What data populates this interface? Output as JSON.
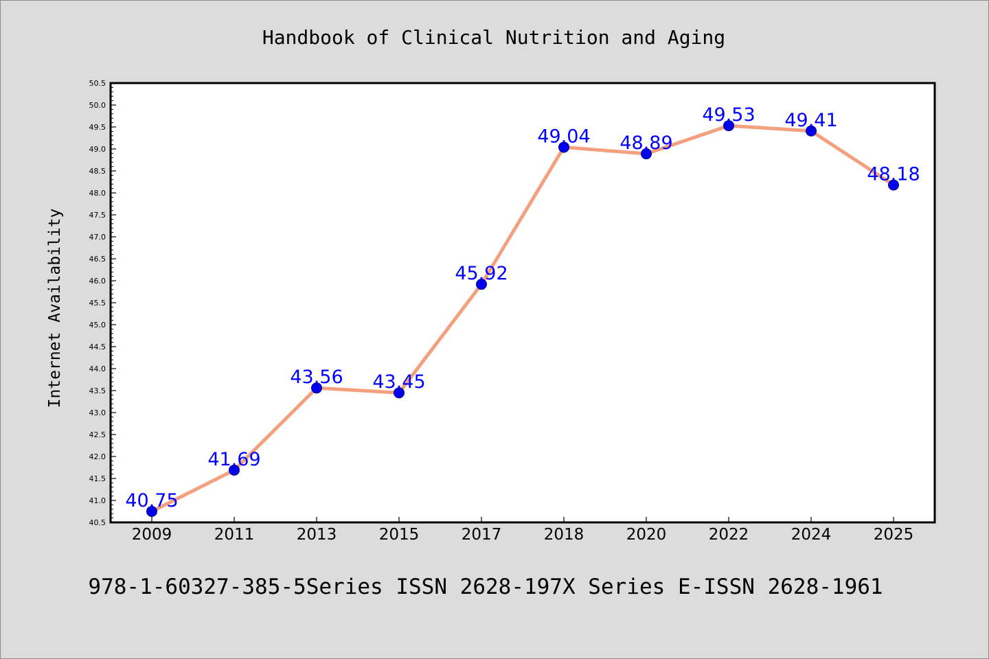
{
  "chart_data": {
    "type": "line",
    "title": "Handbook of Clinical Nutrition and Aging",
    "ylabel": "Internet Availability",
    "xlabel": "",
    "footer": "978-1-60327-385-5Series ISSN 2628-197X Series E-ISSN 2628-1961",
    "categories": [
      "2009",
      "2011",
      "2013",
      "2015",
      "2017",
      "2018",
      "2020",
      "2022",
      "2024",
      "2025"
    ],
    "values": [
      40.75,
      41.69,
      43.56,
      43.45,
      45.92,
      49.04,
      48.89,
      49.53,
      49.41,
      48.18
    ],
    "data_labels": [
      "40.75",
      "41.69",
      "43.56",
      "43.45",
      "45.92",
      "49.04",
      "48.89",
      "49.53",
      "49.41",
      "48.18"
    ],
    "ylim": [
      40.5,
      50.5
    ],
    "y_ticks": [
      "40.5",
      "41.0",
      "41.5",
      "42.0",
      "42.5",
      "43.0",
      "43.5",
      "44.0",
      "44.5",
      "45.0",
      "45.5",
      "46.0",
      "46.5",
      "47.0",
      "47.5",
      "48.0",
      "48.5",
      "49.0",
      "49.5",
      "50.0",
      "50.5"
    ],
    "grid": false,
    "legend": "none",
    "colors": {
      "line": "#f4a07e",
      "marker_fill": "#0000ee",
      "marker_edge": "#000080",
      "data_label": "#0000ff",
      "background": "#dcdcdc",
      "plot_background": "#ffffff"
    }
  }
}
